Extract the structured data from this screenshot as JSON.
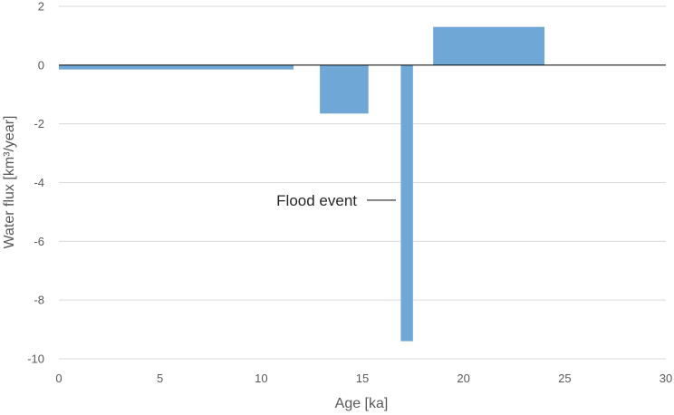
{
  "chart_data": {
    "type": "bar",
    "title": "",
    "xlabel": "Age [ka]",
    "ylabel": "Water flux [km³/year]",
    "xlim": [
      0,
      30
    ],
    "ylim": [
      -10,
      2
    ],
    "x_ticks": [
      "0",
      "5",
      "10",
      "15",
      "20",
      "25",
      "30"
    ],
    "y_ticks": [
      "2",
      "0",
      "-2",
      "-4",
      "-6",
      "-8",
      "-10"
    ],
    "grid": "horizontal",
    "legend": "none",
    "bar_color": "#6fa8d6",
    "bars": [
      {
        "x_start": 0,
        "x_end": 11.6,
        "value": -0.15
      },
      {
        "x_start": 12.9,
        "x_end": 15.3,
        "value": -1.65
      },
      {
        "x_start": 16.9,
        "x_end": 17.5,
        "value": -9.4
      },
      {
        "x_start": 18.5,
        "x_end": 24,
        "value": 1.3
      }
    ],
    "annotations": [
      {
        "text": "Flood event",
        "x": 17.2,
        "y": -4.6
      }
    ]
  }
}
